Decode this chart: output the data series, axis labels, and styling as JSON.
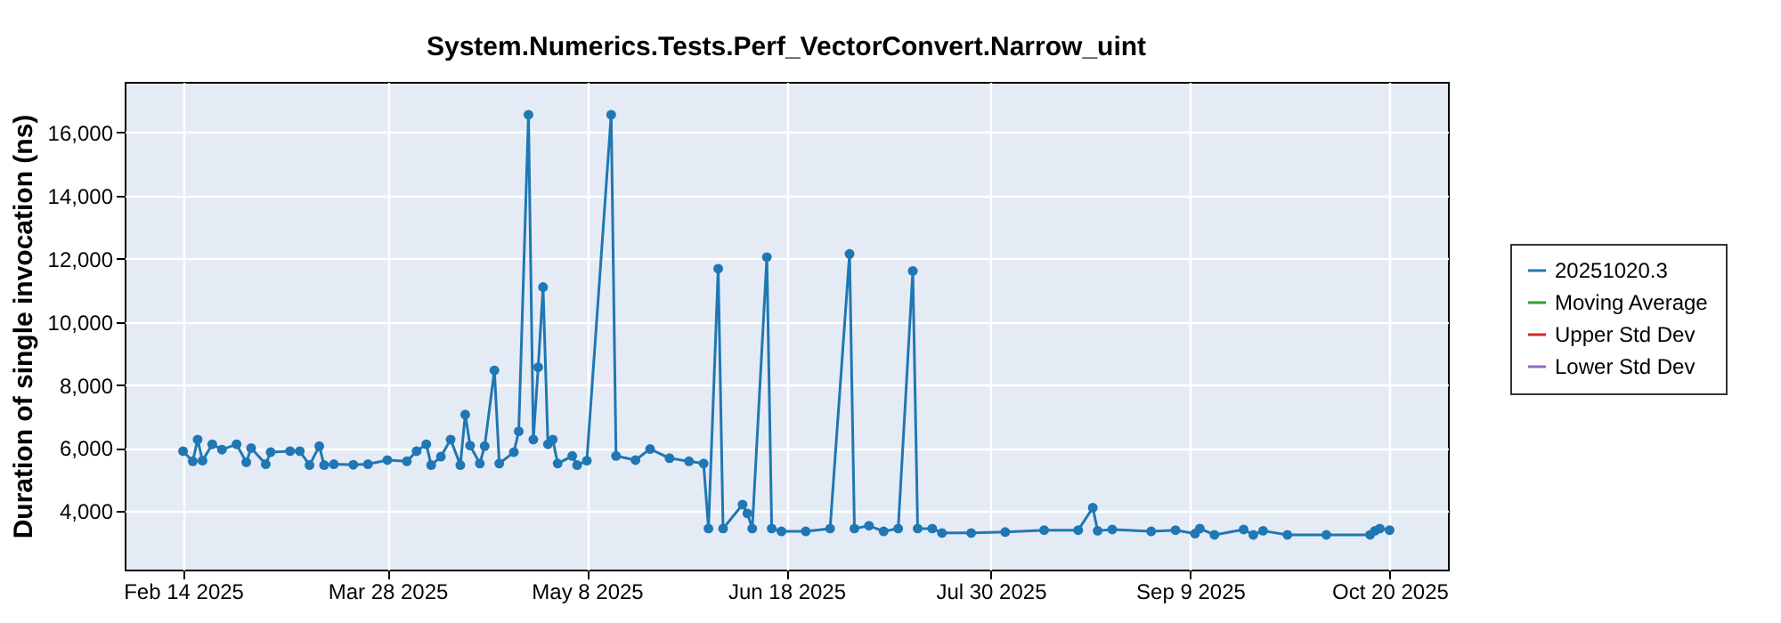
{
  "chart_data": {
    "type": "line",
    "title": "System.Numerics.Tests.Perf_VectorConvert.Narrow_uint",
    "ylabel": "Duration of single invocation (ns)",
    "x": [
      "2025-02-14",
      "2025-02-16",
      "2025-02-17",
      "2025-02-18",
      "2025-02-20",
      "2025-02-22",
      "2025-02-25",
      "2025-02-27",
      "2025-02-28",
      "2025-03-03",
      "2025-03-04",
      "2025-03-08",
      "2025-03-10",
      "2025-03-12",
      "2025-03-14",
      "2025-03-15",
      "2025-03-17",
      "2025-03-21",
      "2025-03-24",
      "2025-03-28",
      "2025-04-01",
      "2025-04-03",
      "2025-04-05",
      "2025-04-06",
      "2025-04-08",
      "2025-04-10",
      "2025-04-12",
      "2025-04-13",
      "2025-04-14",
      "2025-04-16",
      "2025-04-17",
      "2025-04-19",
      "2025-04-20",
      "2025-04-23",
      "2025-04-24",
      "2025-04-26",
      "2025-04-27",
      "2025-04-28",
      "2025-04-29",
      "2025-04-30",
      "2025-05-01",
      "2025-05-02",
      "2025-05-05",
      "2025-05-06",
      "2025-05-08",
      "2025-05-13",
      "2025-05-14",
      "2025-05-18",
      "2025-05-21",
      "2025-05-25",
      "2025-05-29",
      "2025-06-01",
      "2025-06-02",
      "2025-06-04",
      "2025-06-05",
      "2025-06-09",
      "2025-06-10",
      "2025-06-11",
      "2025-06-14",
      "2025-06-15",
      "2025-06-17",
      "2025-06-22",
      "2025-06-27",
      "2025-07-01",
      "2025-07-02",
      "2025-07-05",
      "2025-07-08",
      "2025-07-11",
      "2025-07-14",
      "2025-07-15",
      "2025-07-18",
      "2025-07-20",
      "2025-07-26",
      "2025-08-02",
      "2025-08-10",
      "2025-08-17",
      "2025-08-20",
      "2025-08-21",
      "2025-08-24",
      "2025-09-01",
      "2025-09-06",
      "2025-09-10",
      "2025-09-11",
      "2025-09-14",
      "2025-09-20",
      "2025-09-22",
      "2025-09-24",
      "2025-09-29",
      "2025-10-07",
      "2025-10-16",
      "2025-10-17",
      "2025-10-18",
      "2025-10-20"
    ],
    "series": [
      {
        "name": "20251020.3",
        "color": "#1f77b4",
        "values": [
          5900,
          5580,
          6270,
          5600,
          6120,
          5950,
          6120,
          5550,
          6000,
          5490,
          5870,
          5900,
          5900,
          5460,
          6060,
          5460,
          5490,
          5470,
          5490,
          5620,
          5580,
          5900,
          6120,
          5460,
          5730,
          6270,
          5460,
          7060,
          6080,
          5510,
          6060,
          8460,
          5510,
          5870,
          6530,
          16560,
          6270,
          8560,
          11100,
          6120,
          6270,
          5510,
          5750,
          5460,
          5600,
          16560,
          5750,
          5620,
          5970,
          5680,
          5580,
          5510,
          3450,
          11680,
          3450,
          4210,
          3930,
          3450,
          12050,
          3450,
          3360,
          3360,
          3450,
          12150,
          3450,
          3540,
          3360,
          3450,
          11610,
          3450,
          3450,
          3310,
          3310,
          3340,
          3400,
          3400,
          4110,
          3380,
          3420,
          3360,
          3400,
          3290,
          3450,
          3250,
          3420,
          3250,
          3380,
          3250,
          3250,
          3250,
          3380,
          3450,
          3400
        ]
      },
      {
        "name": "Moving Average",
        "color": "#2ca02c",
        "values": [
          null,
          null,
          null,
          null,
          null,
          null,
          null,
          null,
          null,
          null,
          null,
          null,
          null,
          null,
          null,
          null,
          null,
          null,
          null,
          null,
          null,
          null,
          null,
          null,
          null,
          null,
          null,
          null,
          null,
          null,
          null,
          null,
          null,
          null,
          null,
          null,
          null,
          null,
          null,
          null,
          null,
          null,
          null,
          null,
          null,
          null,
          null,
          null,
          null,
          null,
          null,
          null,
          null,
          null,
          null,
          null,
          null,
          null,
          null,
          null,
          null,
          null,
          null,
          null,
          null,
          null,
          null,
          null,
          null,
          null,
          null,
          null,
          null,
          null,
          null,
          null,
          null,
          null,
          null,
          null,
          null,
          null,
          null,
          null,
          null,
          null,
          null,
          null,
          null,
          null,
          null,
          null,
          null
        ]
      },
      {
        "name": "Upper Std Dev",
        "color": "#d62728",
        "values": [
          null,
          null,
          null,
          null,
          null,
          null,
          null,
          null,
          null,
          null,
          null,
          null,
          null,
          null,
          null,
          null,
          null,
          null,
          null,
          null,
          null,
          null,
          null,
          null,
          null,
          null,
          null,
          null,
          null,
          null,
          null,
          null,
          null,
          null,
          null,
          null,
          null,
          null,
          null,
          null,
          null,
          null,
          null,
          null,
          null,
          null,
          null,
          null,
          null,
          null,
          null,
          null,
          null,
          null,
          null,
          null,
          null,
          null,
          null,
          null,
          null,
          null,
          null,
          null,
          null,
          null,
          null,
          null,
          null,
          null,
          null,
          null,
          null,
          null,
          null,
          null,
          null,
          null,
          null,
          null,
          null,
          null,
          null,
          null,
          null,
          null,
          null,
          null,
          null,
          null,
          null,
          null,
          null
        ]
      },
      {
        "name": "Lower Std Dev",
        "color": "#9467bd",
        "values": [
          null,
          null,
          null,
          null,
          null,
          null,
          null,
          null,
          null,
          null,
          null,
          null,
          null,
          null,
          null,
          null,
          null,
          null,
          null,
          null,
          null,
          null,
          null,
          null,
          null,
          null,
          null,
          null,
          null,
          null,
          null,
          null,
          null,
          null,
          null,
          null,
          null,
          null,
          null,
          null,
          null,
          null,
          null,
          null,
          null,
          null,
          null,
          null,
          null,
          null,
          null,
          null,
          null,
          null,
          null,
          null,
          null,
          null,
          null,
          null,
          null,
          null,
          null,
          null,
          null,
          null,
          null,
          null,
          null,
          null,
          null,
          null,
          null,
          null,
          null,
          null,
          null,
          null,
          null,
          null,
          null,
          null,
          null,
          null,
          null,
          null,
          null,
          null,
          null,
          null,
          null,
          null,
          null
        ]
      }
    ],
    "xlim": [
      "2025-02-02",
      "2025-11-01"
    ],
    "xticks": [
      {
        "value": "2025-02-14",
        "label": "Feb 14 2025"
      },
      {
        "value": "2025-03-28",
        "label": "Mar 28 2025"
      },
      {
        "value": "2025-05-08",
        "label": "May 8 2025"
      },
      {
        "value": "2025-06-18",
        "label": "Jun 18 2025"
      },
      {
        "value": "2025-07-30",
        "label": "Jul 30 2025"
      },
      {
        "value": "2025-09-09",
        "label": "Sep 9 2025"
      },
      {
        "value": "2025-10-20",
        "label": "Oct 20 2025"
      }
    ],
    "ylim": [
      2150,
      17600
    ],
    "yticks": [
      {
        "value": 4000,
        "label": "4,000"
      },
      {
        "value": 6000,
        "label": "6,000"
      },
      {
        "value": 8000,
        "label": "8,000"
      },
      {
        "value": 10000,
        "label": "10,000"
      },
      {
        "value": 12000,
        "label": "12,000"
      },
      {
        "value": 14000,
        "label": "14,000"
      },
      {
        "value": 16000,
        "label": "16,000"
      }
    ],
    "grid": true,
    "legend": "right",
    "marker": "circle",
    "line_style": "solid"
  }
}
